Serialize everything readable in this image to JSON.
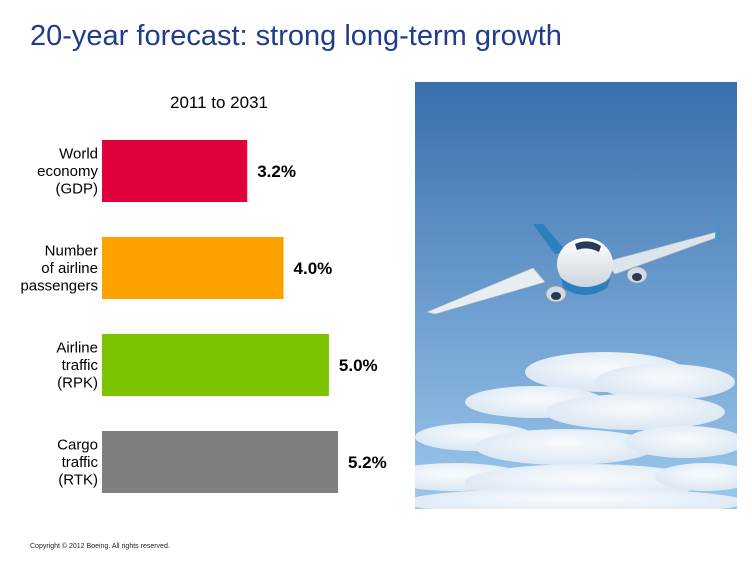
{
  "page": {
    "title": "20-year forecast: strong long-term growth",
    "copyright": "Copyright © 2012 Boeing. All rights reserved."
  },
  "chart_data": {
    "type": "bar",
    "orientation": "horizontal",
    "title": "2011 to 2031",
    "categories": [
      [
        "World",
        "economy",
        "(GDP)"
      ],
      [
        "Number",
        "of airline",
        "passengers"
      ],
      [
        "Airline",
        "traffic",
        "(RPK)"
      ],
      [
        "Cargo",
        "traffic",
        "(RTK)"
      ]
    ],
    "values": [
      3.2,
      4.0,
      5.0,
      5.2
    ],
    "value_labels": [
      "3.2%",
      "4.0%",
      "5.0%",
      "5.2%"
    ],
    "colors": [
      "#e0003c",
      "#ffa200",
      "#7dc400",
      "#7f7f7f"
    ],
    "xlabel": "",
    "ylabel": "",
    "xlim": [
      0,
      5.2
    ],
    "grid": false,
    "legend": "none"
  },
  "photo": {
    "subject": "airliner-in-blue-sky-with-clouds",
    "sky_top": "#3a6fae",
    "sky_bottom": "#9cc8ec"
  }
}
